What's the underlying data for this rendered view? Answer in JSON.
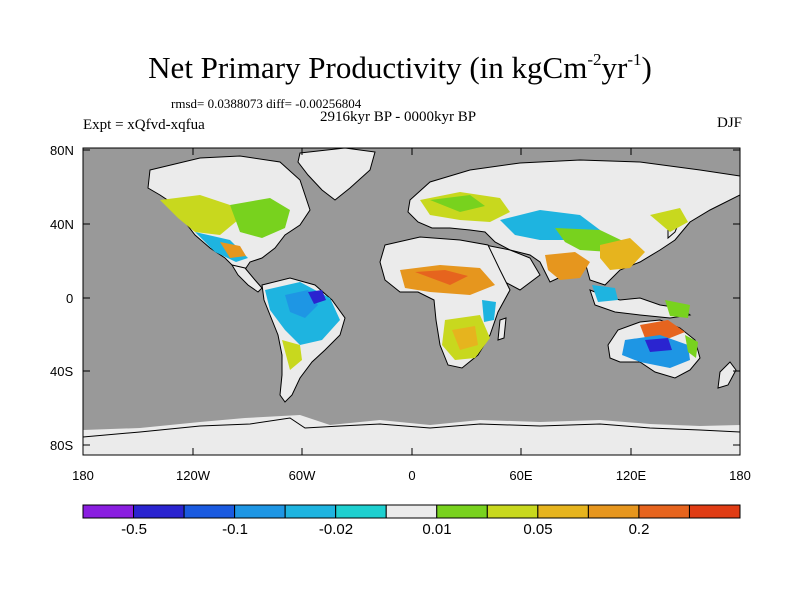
{
  "title": {
    "main": "Net Primary Productivity (in kgCm",
    "exp1": "-2",
    "mid": "yr",
    "exp2": "-1",
    "close": ")"
  },
  "stats": "rmsd= 0.0388073 diff= -0.00256804",
  "experiment": "Expt = xQfvd-xqfua",
  "period": "2916kyr BP - 0000kyr BP",
  "season": "DJF",
  "lat_labels": [
    "80N",
    "40N",
    "0",
    "40S",
    "80S"
  ],
  "lon_labels": [
    "180",
    "120W",
    "60W",
    "0",
    "60E",
    "120E",
    "180"
  ],
  "colorbar": {
    "colors": [
      "#8a1ee0",
      "#2a24d0",
      "#1a5ae0",
      "#1e96e4",
      "#1eb4e0",
      "#1ed0d0",
      "#ebebeb",
      "#78d21e",
      "#c8d81e",
      "#e6b41e",
      "#e6961e",
      "#e6641e",
      "#e03c14"
    ],
    "labels": [
      "-0.5",
      "-0.1",
      "-0.02",
      "0.01",
      "0.05",
      "0.2"
    ]
  },
  "map_colors": {
    "ocean": "#999999",
    "land": "#ebebeb",
    "ice": "#ebebeb",
    "coast": "#000000"
  }
}
